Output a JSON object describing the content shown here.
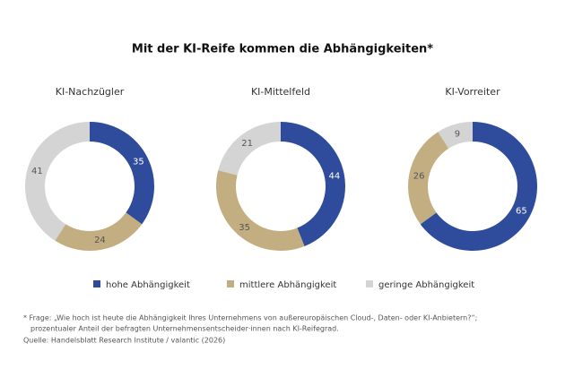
{
  "title": "Mit der KI-Reife kommen die Abhängigkeiten*",
  "chart_data": [
    {
      "type": "pie",
      "donut": true,
      "title": "KI-Nachzügler",
      "categories": [
        "hohe Abhängigkeit",
        "mittlere Abhängigkeit",
        "geringe Abhängigkeit"
      ],
      "values": [
        35,
        24,
        41
      ],
      "colors": [
        "#2f4b9b",
        "#c3ae82",
        "#d4d4d4"
      ]
    },
    {
      "type": "pie",
      "donut": true,
      "title": "KI-Mittelfeld",
      "categories": [
        "hohe Abhängigkeit",
        "mittlere Abhängigkeit",
        "geringe Abhängigkeit"
      ],
      "values": [
        44,
        35,
        21
      ],
      "colors": [
        "#2f4b9b",
        "#c3ae82",
        "#d4d4d4"
      ]
    },
    {
      "type": "pie",
      "donut": true,
      "title": "KI-Vorreiter",
      "categories": [
        "hohe Abhängigkeit",
        "mittlere Abhängigkeit",
        "geringe Abhängigkeit"
      ],
      "values": [
        65,
        26,
        9
      ],
      "colors": [
        "#2f4b9b",
        "#c3ae82",
        "#d4d4d4"
      ]
    }
  ],
  "footnote": [
    "* Frage: „Wie hoch ist heute die Abhängigkeit Ihres Unternehmens von außereuropäischen Cloud-, Daten- oder KI-Anbietern?“;",
    "prozentualer Anteil der befragten Unternehmensentscheider·innen nach KI-Reifegrad."
  ],
  "source": "Quelle: Handelsblatt Research Institute / valantic (2026)"
}
